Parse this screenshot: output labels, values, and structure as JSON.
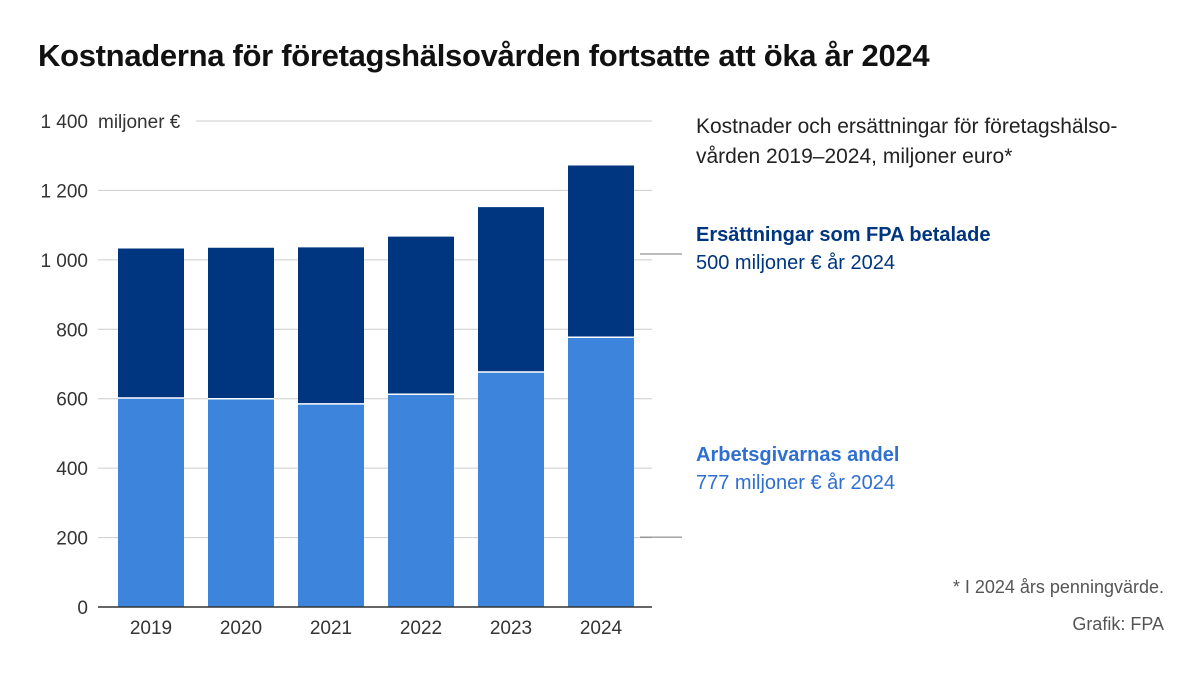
{
  "title": "Kostnaderna för företagshälsovården fortsatte att öka år 2024",
  "subtitle": "Kostnader och ersättningar för företagshälso-vården 2019–2024, miljoner euro*",
  "footnote": "* I 2024 års penningvärde.",
  "credit": "Grafik: FPA",
  "colors": {
    "employer": "#3d84dc",
    "fpa": "#003580",
    "grid": "#cccccc",
    "axis": "#333333"
  },
  "chart_data": {
    "type": "bar",
    "stacked": true,
    "categories": [
      "2019",
      "2020",
      "2021",
      "2022",
      "2023",
      "2024"
    ],
    "series": [
      {
        "name": "Arbetsgivarnas andel",
        "values": [
          602,
          600,
          585,
          613,
          677,
          777
        ]
      },
      {
        "name": "Ersättningar som FPA betalade",
        "values": [
          433,
          437,
          453,
          456,
          477,
          497
        ]
      }
    ],
    "ylim": [
      0,
      1400
    ],
    "yticks": [
      0,
      200,
      400,
      600,
      800,
      1000,
      1200,
      1400
    ],
    "ytick_labels": [
      "0",
      "200",
      "400",
      "600",
      "800",
      "1 000",
      "1 200",
      "1 400"
    ],
    "yunit": "miljoner €",
    "grid": true,
    "legend": {
      "top": {
        "name": "Ersättningar som FPA betalade",
        "value": "500 miljoner € år 2024"
      },
      "bottom": {
        "name": "Arbetsgivarnas andel",
        "value": "777 miljoner € år 2024"
      }
    }
  }
}
